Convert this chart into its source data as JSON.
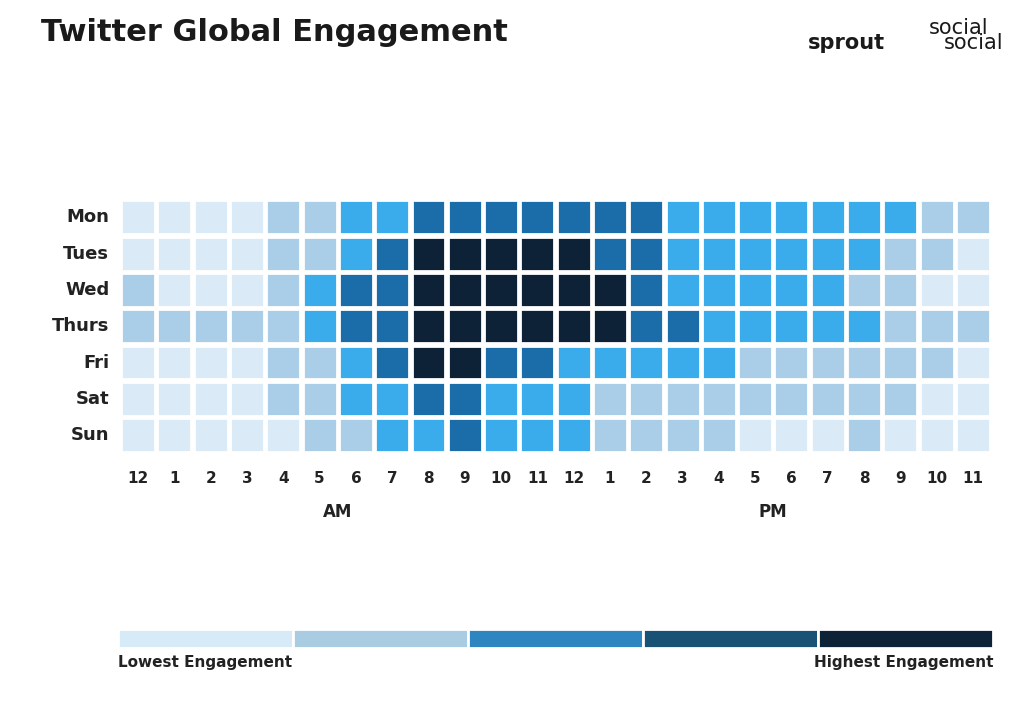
{
  "title": "Twitter Global Engagement",
  "logo_text_sprout": "sprout",
  "logo_text_social": "social",
  "days": [
    "Mon",
    "Tues",
    "Wed",
    "Thurs",
    "Fri",
    "Sat",
    "Sun"
  ],
  "hours": [
    "12",
    "1",
    "2",
    "3",
    "4",
    "5",
    "6",
    "7",
    "8",
    "9",
    "10",
    "11",
    "12",
    "1",
    "2",
    "3",
    "4",
    "5",
    "6",
    "7",
    "8",
    "9",
    "10",
    "11"
  ],
  "am_label": "AM",
  "pm_label": "PM",
  "lowest_label": "Lowest Engagement",
  "highest_label": "Highest Engagement",
  "background_color": "#ffffff",
  "title_color": "#1a1a1a",
  "label_color": "#222222",
  "legend_colors": [
    "#d6eaf8",
    "#a9cce3",
    "#2e86c1",
    "#1a5276",
    "#0d2137"
  ],
  "engagement": [
    [
      1,
      1,
      1,
      1,
      2,
      2,
      3,
      3,
      4,
      4,
      4,
      4,
      4,
      4,
      4,
      3,
      3,
      3,
      3,
      3,
      3,
      3,
      2,
      2
    ],
    [
      1,
      1,
      1,
      1,
      2,
      2,
      3,
      4,
      5,
      5,
      5,
      5,
      5,
      4,
      4,
      3,
      3,
      3,
      3,
      3,
      3,
      2,
      2,
      1
    ],
    [
      2,
      1,
      1,
      1,
      2,
      3,
      4,
      4,
      5,
      5,
      5,
      5,
      5,
      5,
      4,
      3,
      3,
      3,
      3,
      3,
      2,
      2,
      1,
      1
    ],
    [
      2,
      2,
      2,
      2,
      2,
      3,
      4,
      4,
      5,
      5,
      5,
      5,
      5,
      5,
      4,
      4,
      3,
      3,
      3,
      3,
      3,
      2,
      2,
      2
    ],
    [
      1,
      1,
      1,
      1,
      2,
      2,
      3,
      4,
      5,
      5,
      4,
      4,
      3,
      3,
      3,
      3,
      3,
      2,
      2,
      2,
      2,
      2,
      2,
      1
    ],
    [
      1,
      1,
      1,
      1,
      2,
      2,
      3,
      3,
      4,
      4,
      3,
      3,
      3,
      2,
      2,
      2,
      2,
      2,
      2,
      2,
      2,
      2,
      1,
      1
    ],
    [
      1,
      1,
      1,
      1,
      1,
      2,
      2,
      3,
      3,
      4,
      3,
      3,
      3,
      2,
      2,
      2,
      2,
      1,
      1,
      1,
      2,
      1,
      1,
      1
    ]
  ],
  "color_map": {
    "1": "#daeaf7",
    "2": "#aacde8",
    "3": "#3aabeb",
    "4": "#1a6da8",
    "5": "#0d2137"
  }
}
